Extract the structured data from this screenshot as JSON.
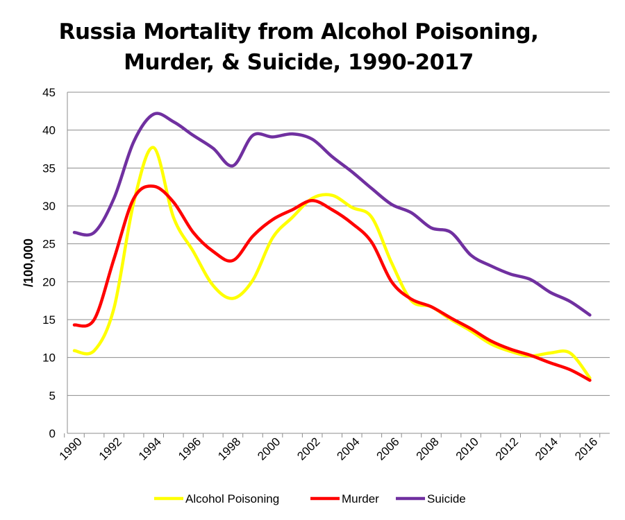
{
  "chart_data": {
    "type": "line",
    "title": "Russia Mortality from Alcohol Poisoning,",
    "title_line2": "Murder, & Suicide, 1990-2017",
    "ylabel": "/100,000",
    "xlabel": "",
    "ylim": [
      0,
      45
    ],
    "yticks": [
      "0",
      "5",
      "10",
      "15",
      "20",
      "25",
      "30",
      "35",
      "40",
      "45"
    ],
    "xticks": [
      "1990",
      "1992",
      "1994",
      "1996",
      "1998",
      "2000",
      "2002",
      "2004",
      "2006",
      "2008",
      "2010",
      "2012",
      "2014",
      "2016"
    ],
    "grid": "horizontal",
    "legend_position": "bottom",
    "x": [
      1990,
      1991,
      1992,
      1993,
      1994,
      1995,
      1996,
      1997,
      1998,
      1999,
      2000,
      2001,
      2002,
      2003,
      2004,
      2005,
      2006,
      2007,
      2008,
      2009,
      2010,
      2011,
      2012,
      2013,
      2014,
      2015,
      2016
    ],
    "series": [
      {
        "name": "Alcohol Poisoning",
        "color": "#FFFF00",
        "values": [
          10.9,
          10.9,
          16.5,
          30.5,
          37.7,
          28.5,
          24.0,
          19.5,
          17.8,
          20.2,
          25.8,
          28.5,
          31.0,
          31.4,
          29.8,
          28.5,
          22.5,
          17.5,
          16.7,
          15.0,
          13.5,
          11.8,
          10.8,
          10.2,
          10.6,
          10.6,
          7.3
        ]
      },
      {
        "name": "Murder",
        "color": "#FF0000",
        "values": [
          14.3,
          15.0,
          23.0,
          31.0,
          32.6,
          30.5,
          26.5,
          24.0,
          22.8,
          26.0,
          28.2,
          29.5,
          30.7,
          29.5,
          27.7,
          25.2,
          20.0,
          17.7,
          16.7,
          15.2,
          13.8,
          12.2,
          11.1,
          10.3,
          9.3,
          8.4,
          7.0
        ]
      },
      {
        "name": "Suicide",
        "color": "#7030A0",
        "values": [
          26.5,
          26.5,
          31.0,
          38.5,
          42.1,
          41.1,
          39.3,
          37.6,
          35.3,
          39.3,
          39.1,
          39.5,
          38.8,
          36.5,
          34.5,
          32.3,
          30.2,
          29.1,
          27.1,
          26.5,
          23.5,
          22.1,
          21.0,
          20.3,
          18.6,
          17.4,
          15.6
        ]
      }
    ]
  }
}
